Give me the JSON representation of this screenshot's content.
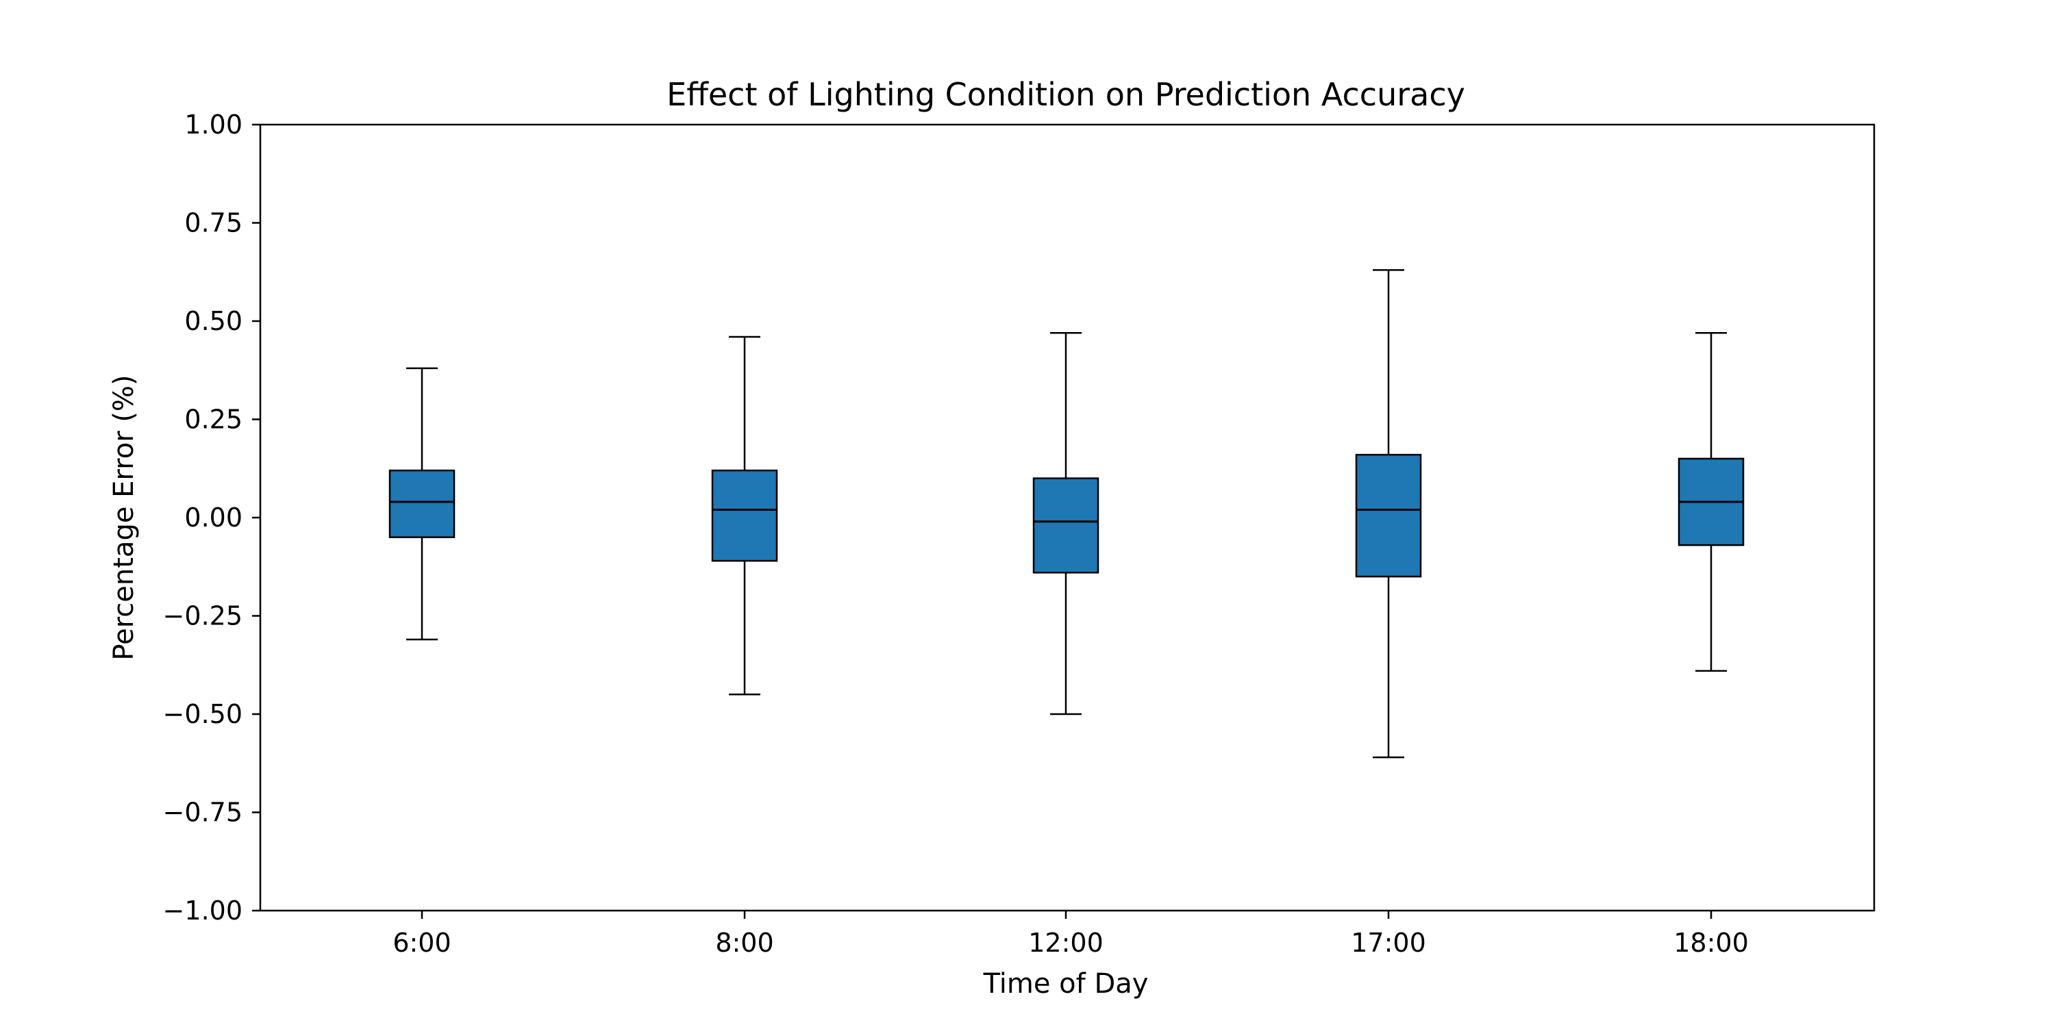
{
  "chart_data": {
    "type": "box",
    "title": "Effect of Lighting Condition on Prediction Accuracy",
    "xlabel": "Time of Day",
    "ylabel": "Percentage Error (%)",
    "ylim": [
      -1.0,
      1.0
    ],
    "yticks": [
      -1.0,
      -0.75,
      -0.5,
      -0.25,
      0.0,
      0.25,
      0.5,
      0.75,
      1.0
    ],
    "ytick_labels": [
      "−1.00",
      "−0.75",
      "−0.50",
      "−0.25",
      "0.00",
      "0.25",
      "0.50",
      "0.75",
      "1.00"
    ],
    "categories": [
      "6:00",
      "8:00",
      "12:00",
      "17:00",
      "18:00"
    ],
    "boxes": [
      {
        "category": "6:00",
        "whisker_low": -0.31,
        "q1": -0.05,
        "median": 0.04,
        "q3": 0.12,
        "whisker_high": 0.38
      },
      {
        "category": "8:00",
        "whisker_low": -0.45,
        "q1": -0.11,
        "median": 0.02,
        "q3": 0.12,
        "whisker_high": 0.46
      },
      {
        "category": "12:00",
        "whisker_low": -0.5,
        "q1": -0.14,
        "median": -0.01,
        "q3": 0.1,
        "whisker_high": 0.47
      },
      {
        "category": "17:00",
        "whisker_low": -0.61,
        "q1": -0.15,
        "median": 0.02,
        "q3": 0.16,
        "whisker_high": 0.63
      },
      {
        "category": "18:00",
        "whisker_low": -0.39,
        "q1": -0.07,
        "median": 0.04,
        "q3": 0.15,
        "whisker_high": 0.47
      }
    ],
    "box_color": "#1f77b4",
    "edge_color": "#000000",
    "grid": false,
    "legend": "none"
  }
}
